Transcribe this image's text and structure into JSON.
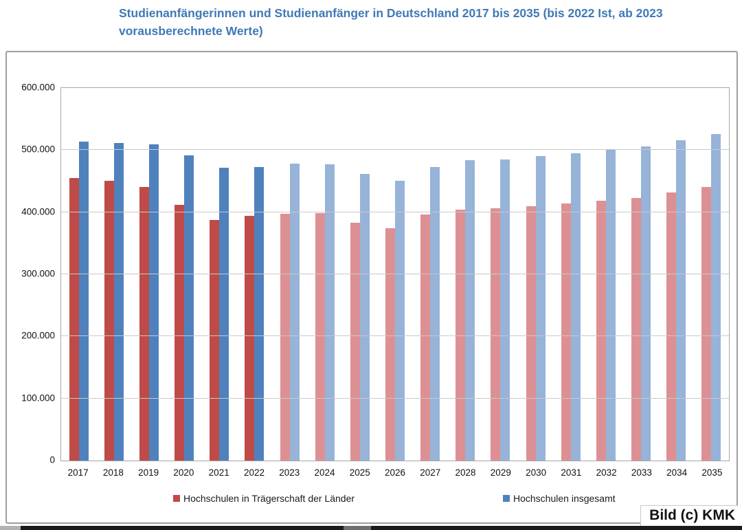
{
  "title": "Studienanfängerinnen und Studienanfänger in Deutschland 2017 bis 2035 (bis 2022 Ist, ab 2023 vorausberechnete Werte)",
  "watermark": "Bild (c) KMK",
  "colors": {
    "title_blue": "#3f79b7",
    "laender_actual": "#be4b48",
    "laender_forecast": "#dd9093",
    "insgesamt_actual": "#4f81bd",
    "insgesamt_forecast": "#97b3d8",
    "gridline": "#c9c9c9",
    "axis": "#a6a6a6"
  },
  "chart_data": {
    "type": "bar",
    "title": "Studienanfängerinnen und Studienanfänger in Deutschland 2017 bis 2035 (bis 2022 Ist, ab 2023 vorausberechnete Werte)",
    "xlabel": "",
    "ylabel": "",
    "categories": [
      2017,
      2018,
      2019,
      2020,
      2021,
      2022,
      2023,
      2024,
      2025,
      2026,
      2027,
      2028,
      2029,
      2030,
      2031,
      2032,
      2033,
      2034,
      2035
    ],
    "series": [
      {
        "name": "Hochschulen in Trägerschaft der Länder",
        "color_actual": "#be4b48",
        "color_forecast": "#dd9093",
        "values": [
          455000,
          451000,
          441000,
          412000,
          388000,
          394000,
          397000,
          398000,
          383000,
          374000,
          396000,
          404000,
          406000,
          410000,
          414000,
          418000,
          423000,
          432000,
          441000
        ]
      },
      {
        "name": "Hochschulen insgesamt",
        "color_actual": "#4f81bd",
        "color_forecast": "#97b3d8",
        "values": [
          514000,
          512000,
          509000,
          491000,
          472000,
          473000,
          478000,
          477000,
          462000,
          451000,
          473000,
          484000,
          485000,
          490000,
          495000,
          500000,
          506000,
          516000,
          526000
        ]
      }
    ],
    "actual_until": 2022,
    "ylim": [
      0,
      600000
    ],
    "ytick_step": 100000,
    "ytick_labels": [
      "0",
      "100.000",
      "200.000",
      "300.000",
      "400.000",
      "500.000",
      "600.000"
    ],
    "grid": true,
    "legend_position": "bottom"
  }
}
